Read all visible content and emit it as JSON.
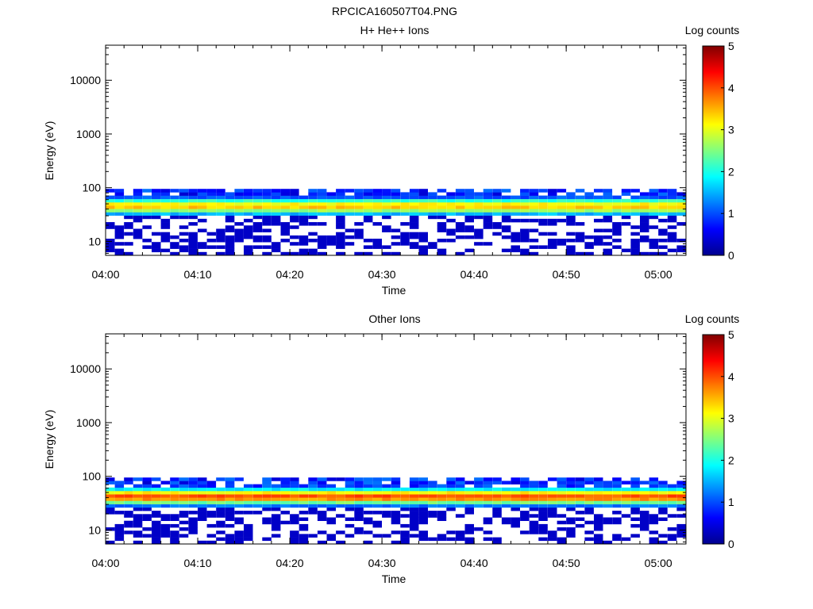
{
  "page_title": "RPCICA160507T04.PNG",
  "chart_data": [
    {
      "type": "heatmap",
      "title": "H+ He++ Ions",
      "xlabel": "Time",
      "ylabel": "Energy (eV)",
      "x_ticks": [
        "04:00",
        "04:10",
        "04:20",
        "04:30",
        "04:40",
        "04:50",
        "05:00"
      ],
      "x_range": [
        "04:00",
        "05:03"
      ],
      "y_scale": "log",
      "y_ticks": [
        "10",
        "100",
        "1000",
        "10000"
      ],
      "y_range": [
        5.5,
        45000
      ],
      "colorbar_label": "Log counts",
      "colorbar_ticks": [
        "0",
        "1",
        "2",
        "3",
        "4",
        "5"
      ],
      "colorbar_range": [
        0,
        5
      ],
      "peak_energy_eV": 45,
      "peak_log_counts": 3.4,
      "data_energy_range_eV": [
        5.5,
        95
      ],
      "grid": false
    },
    {
      "type": "heatmap",
      "title": "Other Ions",
      "xlabel": "Time",
      "ylabel": "Energy (eV)",
      "x_ticks": [
        "04:00",
        "04:10",
        "04:20",
        "04:30",
        "04:40",
        "04:50",
        "05:00"
      ],
      "x_range": [
        "04:00",
        "05:03"
      ],
      "y_scale": "log",
      "y_ticks": [
        "10",
        "100",
        "1000",
        "10000"
      ],
      "y_range": [
        5.5,
        45000
      ],
      "colorbar_label": "Log counts",
      "colorbar_ticks": [
        "0",
        "1",
        "2",
        "3",
        "4",
        "5"
      ],
      "colorbar_range": [
        0,
        5
      ],
      "peak_energy_eV": 42,
      "peak_log_counts": 4.0,
      "data_energy_range_eV": [
        5.5,
        95
      ],
      "grid": false
    }
  ]
}
